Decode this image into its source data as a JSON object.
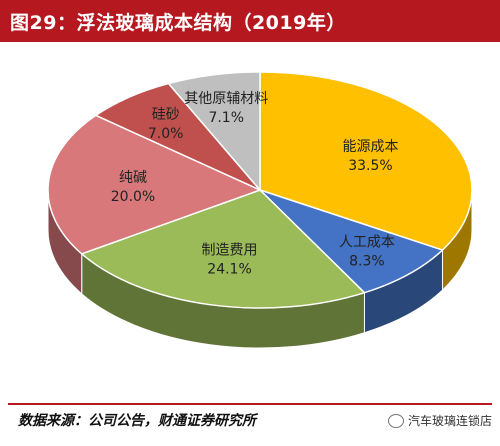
{
  "header": {
    "title": "图29：浮法玻璃成本结构（2019年）"
  },
  "footer": {
    "source": "数据来源：公司公告，财通证券研究所",
    "watermark": "汽车玻璃连锁店"
  },
  "colors": {
    "title_bar": "#b5191f",
    "footer_rule": "#b5191f"
  },
  "chart_data": {
    "type": "pie",
    "title": "",
    "start_angle_deg": -90,
    "slices": [
      {
        "label": "能源成本",
        "value": 33.5,
        "display": "33.5%",
        "color": "#ffc000"
      },
      {
        "label": "人工成本",
        "value": 8.3,
        "display": "8.3%",
        "color": "#4472c4"
      },
      {
        "label": "制造费用",
        "value": 24.1,
        "display": "24.1%",
        "color": "#9bbb59"
      },
      {
        "label": "纯碱",
        "value": 20.0,
        "display": "20.0%",
        "color": "#d9787a"
      },
      {
        "label": "硅砂",
        "value": 7.0,
        "display": "7.0%",
        "color": "#c0504d"
      },
      {
        "label": "其他原辅材料",
        "value": 7.1,
        "display": "7.1%",
        "color": "#bfbfbf"
      }
    ]
  }
}
